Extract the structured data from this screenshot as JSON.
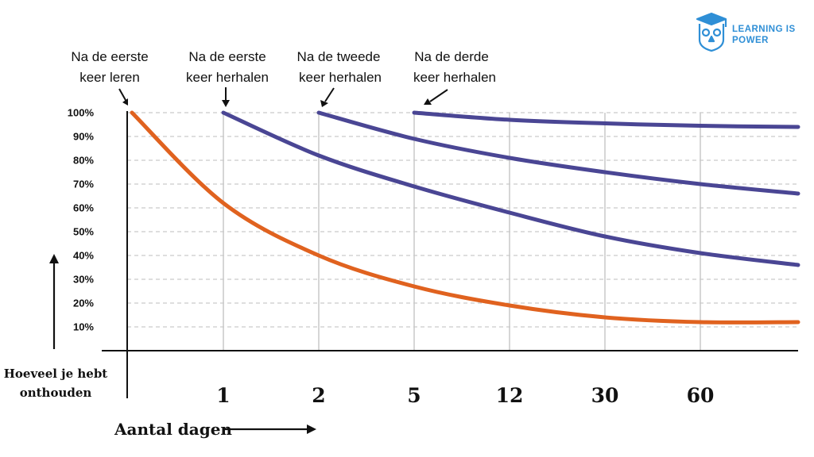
{
  "logo": {
    "line1": "LEARNING IS",
    "line2": "POWER",
    "color": "#2f8fd6"
  },
  "annotations": [
    {
      "line1": "Na de eerste",
      "line2": "keer leren"
    },
    {
      "line1": "Na de eerste",
      "line2": "keer herhalen"
    },
    {
      "line1": "Na de tweede",
      "line2": "keer herhalen"
    },
    {
      "line1": "Na de derde",
      "line2": "keer herhalen"
    }
  ],
  "colors": {
    "orange": "#e0621f",
    "purple": "#4a4694",
    "grid": "#c9c9c9",
    "axis": "#111111"
  },
  "chart_data": {
    "type": "line",
    "xlabel": "Aantal dagen",
    "ylabel_line1": "Hoeveel je hebt",
    "ylabel_line2": "onthouden",
    "x_ticks": [
      "1",
      "2",
      "5",
      "12",
      "30",
      "60"
    ],
    "y_ticks": [
      "100%",
      "90%",
      "80%",
      "70%",
      "60%",
      "50%",
      "40%",
      "30%",
      "20%",
      "10%"
    ],
    "ylim": [
      0,
      100
    ],
    "grid": true,
    "series": [
      {
        "color": "#e0621f",
        "points": [
          [
            0,
            100
          ],
          [
            1,
            62
          ],
          [
            2,
            40
          ],
          [
            5,
            27
          ],
          [
            12,
            19
          ],
          [
            30,
            14
          ],
          [
            60,
            12
          ],
          [
            90,
            12
          ]
        ]
      },
      {
        "color": "#4a4694",
        "points": [
          [
            1,
            100
          ],
          [
            2,
            82
          ],
          [
            5,
            69
          ],
          [
            12,
            58
          ],
          [
            30,
            48
          ],
          [
            60,
            41
          ],
          [
            90,
            36
          ]
        ]
      },
      {
        "color": "#4a4694",
        "points": [
          [
            2,
            100
          ],
          [
            5,
            89
          ],
          [
            12,
            81
          ],
          [
            30,
            75
          ],
          [
            60,
            70
          ],
          [
            90,
            66
          ]
        ]
      },
      {
        "color": "#4a4694",
        "points": [
          [
            5,
            100
          ],
          [
            12,
            97
          ],
          [
            30,
            95.5
          ],
          [
            60,
            94.5
          ],
          [
            90,
            94
          ]
        ]
      }
    ]
  }
}
